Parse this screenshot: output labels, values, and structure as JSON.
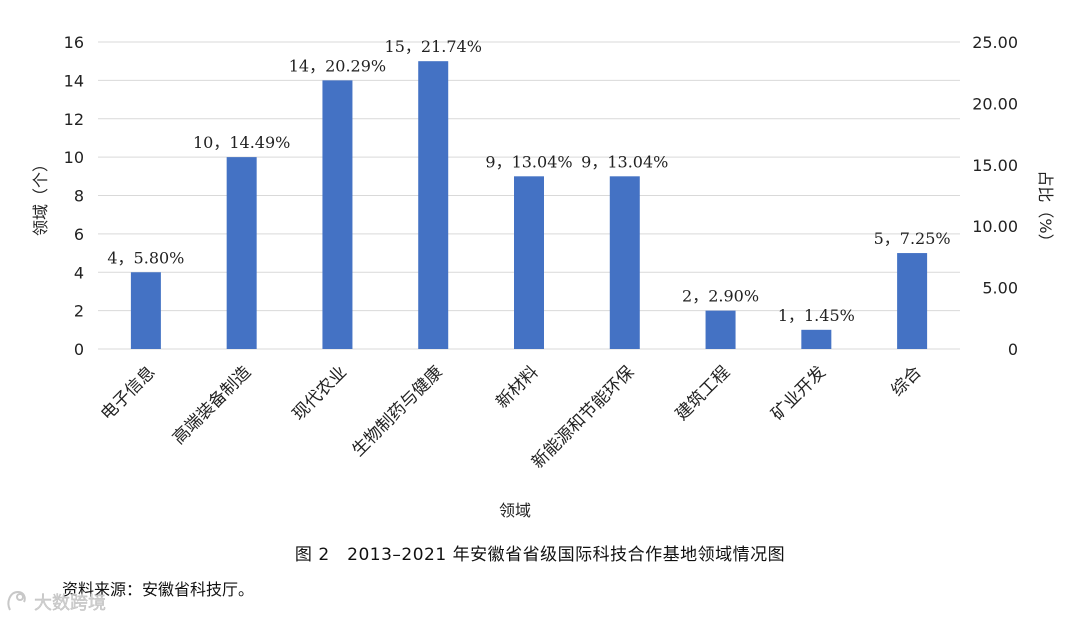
{
  "chart_data": {
    "type": "bar",
    "categories": [
      "电子信息",
      "高端装备制造",
      "现代农业",
      "生物制药与健康",
      "新材料",
      "新能源和节能环保",
      "建筑工程",
      "矿业开发",
      "综合"
    ],
    "values": [
      4,
      10,
      14,
      15,
      9,
      9,
      2,
      1,
      5
    ],
    "data_labels": [
      "4，5.80%",
      "10，14.49%",
      "14，20.29%",
      "15，21.74%",
      "9，13.04%",
      "9，13.04%",
      "2，2.90%",
      "1，1.45%",
      "5，7.25%"
    ],
    "xlabel": "领域",
    "ylabel": "领域（个）",
    "y2label": "占比（%）",
    "ylim": [
      0,
      16
    ],
    "y_ticks": [
      "0",
      "2",
      "4",
      "6",
      "8",
      "10",
      "12",
      "14",
      "16"
    ],
    "y2lim": [
      0,
      25
    ],
    "y2_ticks": [
      "0",
      "5.00",
      "10.00",
      "15.00",
      "20.00",
      "25.00"
    ],
    "grid": true,
    "bar_color": "#4472c4"
  },
  "caption": "图 2　2013–2021 年安徽省省级国际科技合作基地领域情况图",
  "source": "资料来源：安徽省科技厅。",
  "watermark": "大数跨境"
}
